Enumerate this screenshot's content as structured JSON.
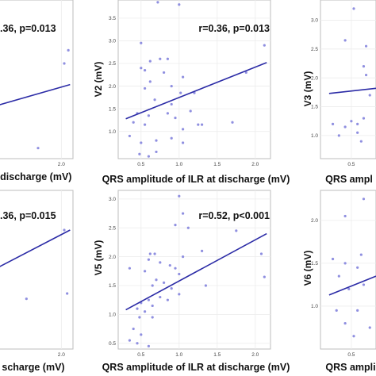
{
  "chart_data": [
    {
      "id": "p1",
      "type": "scatter",
      "xlabel": "at discharge (mV)",
      "ylabel": "",
      "annotation": ".36, p=0.013",
      "xlim": [
        0.4,
        2.2
      ],
      "ylim": [
        0.3,
        3.3
      ],
      "x_ticks": [
        "2.0"
      ],
      "y_ticks": [],
      "fit": {
        "x0": 0.4,
        "y0": 1.15,
        "x1": 2.15,
        "y1": 1.7
      },
      "points": [
        [
          2.12,
          2.35
        ],
        [
          2.05,
          2.1
        ],
        [
          0.45,
          1.05
        ],
        [
          1.6,
          0.5
        ],
        [
          0.42,
          1.25
        ]
      ]
    },
    {
      "id": "p2",
      "type": "scatter",
      "xlabel": "QRS amplitude of ILR at discharge (mV)",
      "ylabel": "V2 (mV)",
      "annotation": "r=0.36, p=0.013",
      "xlim": [
        0.2,
        2.2
      ],
      "ylim": [
        0.4,
        3.9
      ],
      "x_ticks": [
        "0.5",
        "1.0",
        "1.5",
        "2.0"
      ],
      "y_ticks": [
        "1.0",
        "1.5",
        "2.0",
        "2.5",
        "3.0",
        "3.5"
      ],
      "fit": {
        "x0": 0.3,
        "y0": 1.28,
        "x1": 2.15,
        "y1": 2.52
      },
      "points": [
        [
          0.72,
          3.85
        ],
        [
          1.0,
          3.8
        ],
        [
          0.5,
          2.95
        ],
        [
          0.62,
          2.55
        ],
        [
          0.75,
          2.6
        ],
        [
          0.85,
          2.6
        ],
        [
          0.5,
          2.4
        ],
        [
          0.55,
          2.35
        ],
        [
          1.05,
          2.2
        ],
        [
          0.62,
          2.1
        ],
        [
          0.9,
          2.0
        ],
        [
          0.55,
          1.95
        ],
        [
          0.8,
          2.3
        ],
        [
          1.2,
          1.85
        ],
        [
          0.68,
          1.7
        ],
        [
          0.9,
          1.6
        ],
        [
          1.02,
          1.85
        ],
        [
          0.45,
          1.4
        ],
        [
          0.6,
          1.35
        ],
        [
          0.85,
          1.4
        ],
        [
          1.15,
          1.45
        ],
        [
          0.4,
          1.2
        ],
        [
          0.55,
          1.15
        ],
        [
          0.95,
          1.3
        ],
        [
          1.05,
          1.05
        ],
        [
          1.25,
          1.15
        ],
        [
          1.3,
          1.15
        ],
        [
          1.7,
          1.2
        ],
        [
          0.35,
          0.9
        ],
        [
          0.5,
          0.75
        ],
        [
          0.7,
          0.8
        ],
        [
          0.9,
          0.85
        ],
        [
          1.05,
          0.75
        ],
        [
          0.48,
          0.5
        ],
        [
          0.6,
          0.45
        ],
        [
          0.7,
          0.55
        ],
        [
          2.12,
          2.9
        ],
        [
          1.88,
          2.3
        ]
      ]
    },
    {
      "id": "p3",
      "type": "scatter",
      "xlabel": "QRS ampl",
      "ylabel": "V3 (mV)",
      "annotation": "",
      "xlim": [
        0.25,
        0.7
      ],
      "ylim": [
        0.6,
        3.35
      ],
      "x_ticks": [
        "0.5"
      ],
      "y_ticks": [
        "1.0",
        "1.5",
        "2.0",
        "2.5",
        "3.0"
      ],
      "fit": {
        "x0": 0.32,
        "y0": 1.73,
        "x1": 0.7,
        "y1": 1.82
      },
      "points": [
        [
          0.52,
          3.2
        ],
        [
          0.45,
          2.65
        ],
        [
          0.62,
          2.55
        ],
        [
          0.6,
          2.2
        ],
        [
          0.62,
          2.05
        ],
        [
          0.35,
          1.2
        ],
        [
          0.4,
          1.0
        ],
        [
          0.45,
          1.15
        ],
        [
          0.5,
          1.25
        ],
        [
          0.55,
          1.2
        ],
        [
          0.6,
          1.3
        ],
        [
          0.58,
          0.9
        ],
        [
          0.65,
          1.7
        ],
        [
          0.55,
          1.05
        ]
      ]
    },
    {
      "id": "p4",
      "type": "scatter",
      "xlabel": "scharge (mV)",
      "ylabel": "",
      "annotation": ".36, p=0.015",
      "xlim": [
        0.4,
        2.2
      ],
      "ylim": [
        0.3,
        3.3
      ],
      "x_ticks": [
        "2.0"
      ],
      "y_ticks": [],
      "fit": {
        "x0": 0.4,
        "y0": 1.55,
        "x1": 2.15,
        "y1": 2.55
      },
      "points": [
        [
          2.05,
          2.55
        ],
        [
          0.42,
          2.2
        ],
        [
          1.4,
          1.25
        ],
        [
          2.1,
          1.35
        ],
        [
          0.6,
          1.55
        ]
      ]
    },
    {
      "id": "p5",
      "type": "scatter",
      "xlabel": "QRS amplitude of ILR at discharge (mV)",
      "ylabel": "V5 (mV)",
      "annotation": "r=0.52, p<0.001",
      "xlim": [
        0.2,
        2.2
      ],
      "ylim": [
        0.4,
        3.15
      ],
      "x_ticks": [
        "0.5",
        "1.0",
        "1.5",
        "2.0"
      ],
      "y_ticks": [
        "0.5",
        "1.0",
        "1.5",
        "2.0",
        "2.5",
        "3.0"
      ],
      "fit": {
        "x0": 0.3,
        "y0": 1.08,
        "x1": 2.15,
        "y1": 2.4
      },
      "points": [
        [
          1.0,
          3.05
        ],
        [
          1.05,
          2.75
        ],
        [
          0.95,
          2.55
        ],
        [
          1.12,
          2.5
        ],
        [
          1.75,
          2.45
        ],
        [
          0.62,
          2.05
        ],
        [
          0.68,
          2.05
        ],
        [
          1.05,
          2.0
        ],
        [
          0.6,
          1.95
        ],
        [
          0.75,
          1.9
        ],
        [
          0.88,
          1.85
        ],
        [
          0.95,
          1.8
        ],
        [
          1.0,
          1.7
        ],
        [
          0.55,
          1.75
        ],
        [
          0.7,
          1.6
        ],
        [
          0.65,
          1.5
        ],
        [
          0.8,
          1.55
        ],
        [
          0.35,
          1.8
        ],
        [
          0.9,
          1.45
        ],
        [
          1.0,
          1.35
        ],
        [
          0.75,
          1.3
        ],
        [
          0.85,
          1.25
        ],
        [
          0.6,
          1.25
        ],
        [
          0.5,
          1.2
        ],
        [
          0.65,
          1.15
        ],
        [
          0.45,
          1.1
        ],
        [
          0.55,
          1.05
        ],
        [
          0.48,
          0.95
        ],
        [
          0.65,
          0.95
        ],
        [
          0.4,
          0.75
        ],
        [
          0.5,
          0.65
        ],
        [
          0.35,
          0.55
        ],
        [
          0.45,
          0.5
        ],
        [
          0.6,
          0.45
        ],
        [
          1.35,
          1.5
        ],
        [
          1.3,
          2.1
        ],
        [
          2.08,
          2.05
        ],
        [
          2.12,
          1.65
        ]
      ]
    },
    {
      "id": "p6",
      "type": "scatter",
      "xlabel": "QRS ampli",
      "ylabel": "V6 (mV)",
      "annotation": "",
      "xlim": [
        0.25,
        0.7
      ],
      "ylim": [
        0.5,
        2.35
      ],
      "x_ticks": [
        "0.5"
      ],
      "y_ticks": [
        "1.0",
        "1.5",
        "2.0"
      ],
      "fit": {
        "x0": 0.32,
        "y0": 1.13,
        "x1": 0.7,
        "y1": 1.35
      },
      "points": [
        [
          0.6,
          2.25
        ],
        [
          0.45,
          2.05
        ],
        [
          0.58,
          1.6
        ],
        [
          0.35,
          1.55
        ],
        [
          0.45,
          1.5
        ],
        [
          0.4,
          1.35
        ],
        [
          0.55,
          1.45
        ],
        [
          0.48,
          1.2
        ],
        [
          0.6,
          1.25
        ],
        [
          0.38,
          0.95
        ],
        [
          0.55,
          0.95
        ],
        [
          0.45,
          0.8
        ],
        [
          0.65,
          0.75
        ],
        [
          0.52,
          0.65
        ]
      ]
    }
  ]
}
